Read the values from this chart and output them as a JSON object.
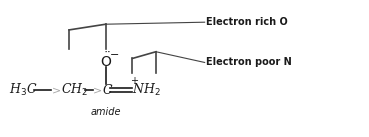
{
  "background_color": "#ffffff",
  "figsize": [
    3.69,
    1.37
  ],
  "dpi": 100,
  "label_amide": "amide",
  "label_electron_rich": "Electron rich O",
  "label_electron_poor": "Electron poor N",
  "text_color": "#1a1a1a",
  "arrow_color": "#aaaaaa",
  "bracket_color": "#444444",
  "font_size_main": 9,
  "font_size_label": 7,
  "font_size_small": 6
}
